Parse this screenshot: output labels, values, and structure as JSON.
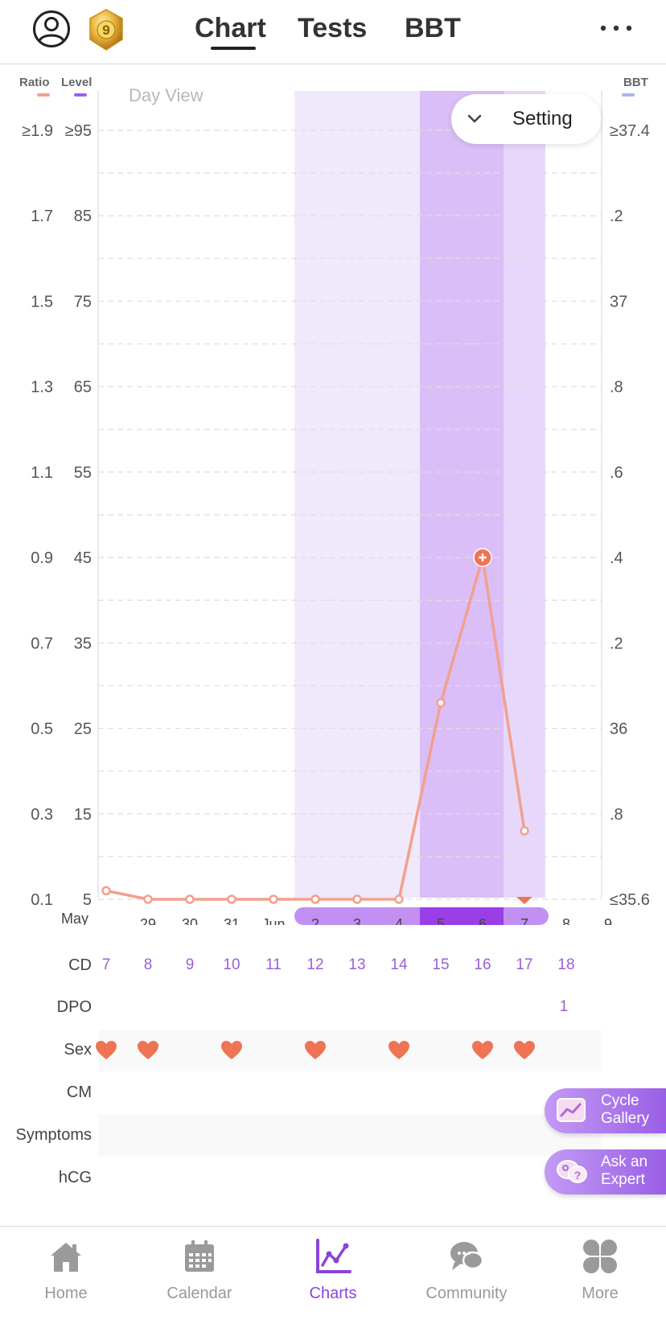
{
  "header": {
    "tabs": [
      {
        "label": "Chart",
        "active": true
      },
      {
        "label": "Tests",
        "active": false
      },
      {
        "label": "BBT",
        "active": false
      }
    ],
    "medal_badge": "9",
    "accent_color": "#8a44d8"
  },
  "chart_data": {
    "type": "line",
    "view_label": "Day View",
    "setting_label": "Setting",
    "axis_headers": {
      "ratio": "Ratio",
      "level": "Level",
      "bbt": "BBT"
    },
    "header_colors": {
      "ratio": "#f2a08e",
      "level": "#9a5ff0",
      "bbt": "#a7b4ef"
    },
    "y_ratio_ticks": [
      "≥1.9",
      "1.7",
      "1.5",
      "1.3",
      "1.1",
      "0.9",
      "0.7",
      "0.5",
      "0.3",
      "0.1"
    ],
    "y_level_ticks": [
      "≥95",
      "85",
      "75",
      "65",
      "55",
      "45",
      "35",
      "25",
      "15",
      "5"
    ],
    "y_bbt_ticks": [
      "≥37.4",
      ".2",
      "37",
      ".8",
      ".6",
      ".4",
      ".2",
      "36",
      ".8",
      "≤35.6"
    ],
    "level_range": [
      5,
      95
    ],
    "x_labels": [
      "May",
      "29",
      "30",
      "31",
      "Jun",
      "2",
      "3",
      "4",
      "5",
      "6",
      "7",
      "8",
      "9"
    ],
    "level_values": [
      6,
      5,
      5,
      5,
      5,
      5,
      5,
      5,
      28,
      45,
      13
    ],
    "peak_index": 9,
    "today_index": 10,
    "fertile_window": [
      5,
      10
    ],
    "high_days": [
      8,
      9
    ],
    "line_color": "#f2a08e",
    "grid": true
  },
  "rows": {
    "labels": {
      "cd": "CD",
      "dpo": "DPO",
      "sex": "Sex",
      "cm": "CM",
      "symptoms": "Symptoms",
      "hcg": "hCG"
    },
    "cd_values": [
      "7",
      "8",
      "9",
      "10",
      "11",
      "12",
      "13",
      "14",
      "15",
      "16",
      "17",
      "18"
    ],
    "dpo_value": "1",
    "sex_days": [
      0,
      1,
      3,
      5,
      7,
      9,
      10
    ]
  },
  "fabs": {
    "cycle_gallery": [
      "Cycle",
      "Gallery"
    ],
    "ask_expert": [
      "Ask an",
      "Expert"
    ]
  },
  "bottom_nav": [
    {
      "label": "Home",
      "icon": "home-icon",
      "active": false
    },
    {
      "label": "Calendar",
      "icon": "calendar-icon",
      "active": false
    },
    {
      "label": "Charts",
      "icon": "charts-icon",
      "active": true
    },
    {
      "label": "Community",
      "icon": "community-icon",
      "active": false
    },
    {
      "label": "More",
      "icon": "more-grid-icon",
      "active": false
    }
  ]
}
